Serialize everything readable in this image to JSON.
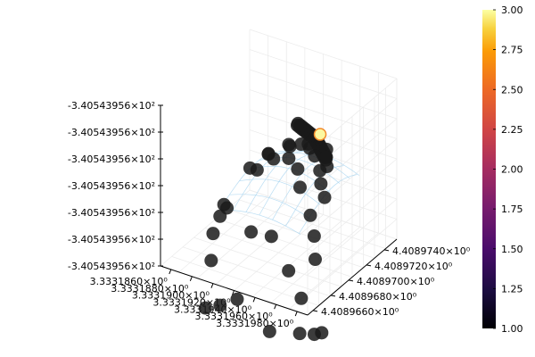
{
  "chart_data": {
    "type": "scatter",
    "title": "",
    "xlabel": "",
    "ylabel": "",
    "zlabel": "",
    "x_ticks": [
      "3.3331860×10⁰",
      "3.3331880×10⁰",
      "3.3331900×10⁰",
      "3.3331920×10⁰",
      "3.3331940×10⁰",
      "3.3331960×10⁰",
      "3.3331980×10⁰"
    ],
    "y_ticks": [
      "4.4089660×10⁰",
      "4.4089680×10⁰",
      "4.4089700×10⁰",
      "4.4089720×10⁰",
      "4.4089740×10⁰"
    ],
    "z_ticks": [
      "-3.40543956×10²",
      "-3.40543956×10²",
      "-3.40543956×10²",
      "-3.40543956×10²",
      "-3.40543956×10²",
      "-3.40543956×10²",
      "-3.40543956×10²"
    ],
    "colorbar": {
      "ticks": [
        "1.00",
        "1.25",
        "1.50",
        "1.75",
        "2.00",
        "2.25",
        "2.50",
        "2.75",
        "3.00"
      ],
      "range": [
        1,
        3
      ],
      "colormap": "inferno"
    },
    "grid": true,
    "legend": "none",
    "colors": {
      "point": "#1a1a1a",
      "highlight": "#fcf8a0",
      "highlight_edge": "#f28a2a",
      "surface": "#a8d4f0"
    },
    "series": [
      {
        "role": "dense-cluster",
        "value": 1,
        "points": [
          [
            3.333193,
            4.4089733,
            -340.5439557
          ],
          [
            3.3331933,
            4.4089731,
            -340.5439557
          ],
          [
            3.3331927,
            4.4089734,
            -340.5439557
          ],
          [
            3.3331936,
            4.4089729,
            -340.5439557
          ],
          [
            3.3331924,
            4.4089735,
            -340.5439557
          ],
          [
            3.3331939,
            4.4089727,
            -340.5439557
          ],
          [
            3.3331921,
            4.4089736,
            -340.5439557
          ],
          [
            3.3331942,
            4.4089725,
            -340.5439557
          ],
          [
            3.3331918,
            4.4089737,
            -340.5439557
          ],
          [
            3.3331945,
            4.4089723,
            -340.5439557
          ],
          [
            3.3331915,
            4.4089738,
            -340.5439557
          ],
          [
            3.3331948,
            4.4089721,
            -340.5439557
          ],
          [
            3.3331912,
            4.4089739,
            -340.5439557
          ],
          [
            3.3331951,
            4.4089719,
            -340.5439557
          ],
          [
            3.3331909,
            4.408974,
            -340.5439557
          ],
          [
            3.3331954,
            4.4089717,
            -340.5439557
          ],
          [
            3.3331906,
            4.4089741,
            -340.5439557
          ],
          [
            3.3331931,
            4.4089731,
            -340.5439557
          ],
          [
            3.3331928,
            4.4089732,
            -340.5439557
          ],
          [
            3.3331935,
            4.4089728,
            -340.5439557
          ],
          [
            3.3331925,
            4.4089733,
            -340.5439557
          ],
          [
            3.3331938,
            4.4089726,
            -340.5439557
          ],
          [
            3.3331922,
            4.4089734,
            -340.5439557
          ],
          [
            3.3331941,
            4.4089724,
            -340.5439557
          ],
          [
            3.3331919,
            4.4089735,
            -340.5439557
          ],
          [
            3.3331944,
            4.4089722,
            -340.5439557
          ],
          [
            3.3331916,
            4.4089736,
            -340.5439557
          ],
          [
            3.3331947,
            4.408972,
            -340.5439557
          ],
          [
            3.3331913,
            4.4089737,
            -340.5439557
          ],
          [
            3.333195,
            4.4089718,
            -340.5439557
          ],
          [
            3.333191,
            4.4089738,
            -340.5439557
          ],
          [
            3.3331953,
            4.4089716,
            -340.5439557
          ],
          [
            3.3331907,
            4.4089739,
            -340.5439557
          ],
          [
            3.3331956,
            4.4089714,
            -340.5439557
          ]
        ]
      },
      {
        "role": "scattered",
        "value": 1,
        "points": [
          [
            3.3331891,
            4.4089724,
            -340.5439557
          ],
          [
            3.3331903,
            4.4089735,
            -340.5439557
          ],
          [
            3.3331917,
            4.408974,
            -340.5439557
          ],
          [
            3.3331945,
            4.4089728,
            -340.5439557
          ],
          [
            3.3331952,
            4.4089719,
            -340.5439557
          ],
          [
            3.3331958,
            4.4089713,
            -340.5439557
          ],
          [
            3.3331883,
            4.4089712,
            -340.5439557
          ],
          [
            3.3331897,
            4.4089717,
            -340.5439557
          ],
          [
            3.3331912,
            4.4089723,
            -340.5439557
          ],
          [
            3.3331925,
            4.4089722,
            -340.5439557
          ],
          [
            3.3331936,
            4.4089719,
            -340.5439557
          ],
          [
            3.3331945,
            4.4089714,
            -340.5439557
          ],
          [
            3.3331956,
            4.4089707,
            -340.5439557
          ],
          [
            3.3331962,
            4.4089701,
            -340.5439557
          ],
          [
            3.3331969,
            4.4089697,
            -340.5439557
          ],
          [
            3.3331874,
            4.4089692,
            -340.5439557
          ],
          [
            3.3331882,
            4.4089686,
            -340.5439557
          ],
          [
            3.33319,
            4.40897,
            -340.5439557
          ],
          [
            3.3331912,
            4.4089705,
            -340.5439557
          ],
          [
            3.3331927,
            4.4089705,
            -340.5439557
          ],
          [
            3.333194,
            4.40897,
            -340.5439557
          ],
          [
            3.3331949,
            4.4089692,
            -340.5439557
          ],
          [
            3.3331965,
            4.4089685,
            -340.5439557
          ],
          [
            3.3331973,
            4.408968,
            -340.5439557
          ],
          [
            3.3331979,
            4.4089674,
            -340.5439557
          ],
          [
            3.3331884,
            4.4089665,
            -340.5439557
          ],
          [
            3.333192,
            4.4089669,
            -340.5439557
          ],
          [
            3.333194,
            4.4089669,
            -340.5439557
          ],
          [
            3.3331962,
            4.4089663,
            -340.5439557
          ],
          [
            3.3331977,
            4.408966,
            -340.5439557
          ],
          [
            3.3331895,
            4.4089645,
            -340.5439557
          ],
          [
            3.3331907,
            4.4089648,
            -340.5439557
          ],
          [
            3.3331923,
            4.4089649,
            -340.5439557
          ],
          [
            3.333196,
            4.4089643,
            -340.5439557
          ],
          [
            3.3331983,
            4.4089651,
            -340.5439557
          ],
          [
            3.3331994,
            4.4089655,
            -340.5439557
          ],
          [
            3.3331998,
            4.4089659,
            -340.5439557
          ],
          [
            3.3331875,
            4.4089678,
            -340.5439557
          ],
          [
            3.3331876,
            4.4089685,
            -340.5439557
          ]
        ]
      },
      {
        "role": "highlight",
        "value": 3,
        "points": [
          [
            3.3331932,
            4.4089736,
            -340.5439557
          ]
        ]
      }
    ]
  }
}
